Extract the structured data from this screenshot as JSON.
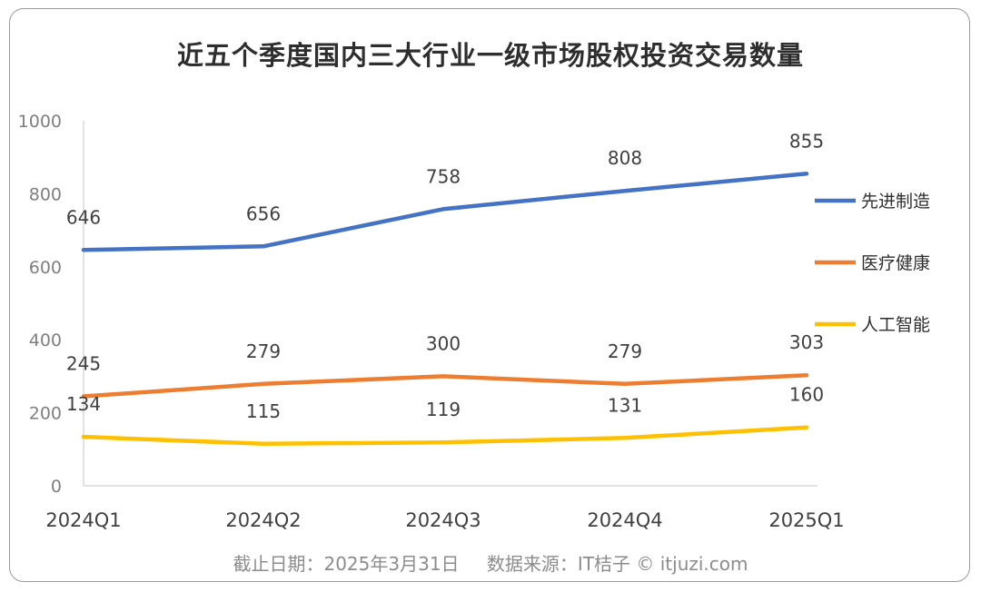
{
  "chart_data": {
    "type": "line",
    "title": "近五个季度国内三大行业一级市场股权投资交易数量",
    "categories": [
      "2024Q1",
      "2024Q2",
      "2024Q3",
      "2024Q4",
      "2025Q1"
    ],
    "ylim": [
      0,
      1000
    ],
    "yticks": [
      0,
      200,
      400,
      600,
      800,
      1000
    ],
    "grid": false,
    "legend": "right",
    "series": [
      {
        "name": "先进制造",
        "color": "#4472c4",
        "values": [
          646,
          656,
          758,
          808,
          855
        ]
      },
      {
        "name": "医疗健康",
        "color": "#ed7d31",
        "values": [
          245,
          279,
          300,
          279,
          303
        ]
      },
      {
        "name": "人工智能",
        "color": "#ffc000",
        "values": [
          134,
          115,
          119,
          131,
          160
        ]
      }
    ]
  },
  "footer": {
    "date_note": "截止日期：2025年3月31日",
    "source_note": "数据来源：IT桔子 © itjuzi.com"
  }
}
